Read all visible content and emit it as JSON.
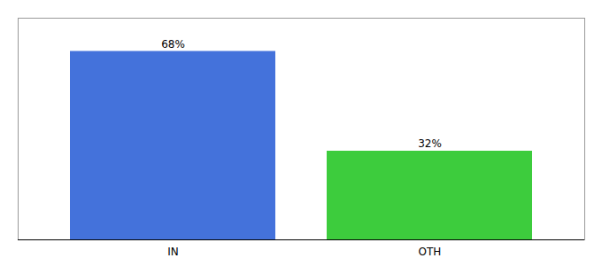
{
  "chart_data": {
    "type": "bar",
    "categories": [
      "IN",
      "OTH"
    ],
    "values": [
      68,
      32
    ],
    "value_labels": [
      "68%",
      "32%"
    ],
    "data_labels": true,
    "colors": [
      "#4472db",
      "#3dcc3d"
    ],
    "ylim": [
      0,
      80
    ],
    "tick_labels": "x",
    "grid": false
  }
}
